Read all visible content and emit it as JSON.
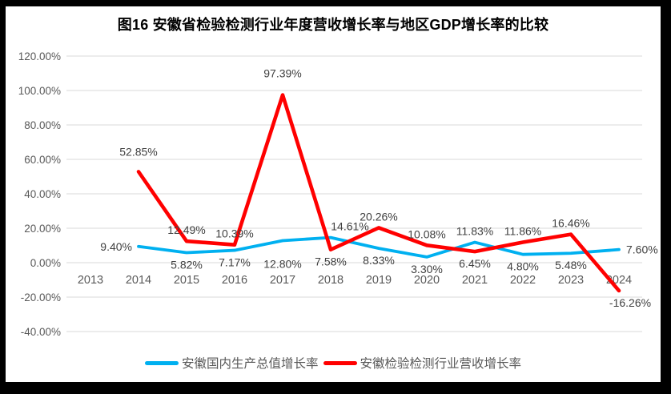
{
  "chart_data": {
    "type": "line",
    "title": "图16  安徽省检验检测行业年度营收增长率与地区GDP增长率的比较",
    "categories": [
      "2013",
      "2014",
      "2015",
      "2016",
      "2017",
      "2018",
      "2019",
      "2020",
      "2021",
      "2022",
      "2023",
      "2024"
    ],
    "series": [
      {
        "name": "安徽国内生产总值增长率",
        "color": "#00B0F0",
        "values": [
          null,
          9.4,
          5.82,
          7.17,
          12.8,
          14.61,
          8.33,
          3.3,
          11.83,
          4.8,
          5.48,
          7.6
        ]
      },
      {
        "name": "安徽检验检测行业营收增长率",
        "color": "#FF0000",
        "values": [
          null,
          52.85,
          12.49,
          10.39,
          97.39,
          7.58,
          20.26,
          10.08,
          6.45,
          11.86,
          16.46,
          -16.26
        ]
      }
    ],
    "values_unit": "percent",
    "data_label_format": "0.00%",
    "y_axis": {
      "min": -40,
      "max": 120,
      "step": 20,
      "tick_labels": [
        "-40.00%",
        "-20.00%",
        "0.00%",
        "20.00%",
        "40.00%",
        "60.00%",
        "80.00%",
        "100.00%",
        "120.00%"
      ]
    },
    "x_axis": {
      "tick_labels": [
        "2013",
        "2014",
        "2015",
        "2016",
        "2017",
        "2018",
        "2019",
        "2020",
        "2021",
        "2022",
        "2023",
        "2024"
      ]
    },
    "grid": true,
    "legend_position": "bottom"
  },
  "colors": {
    "outer_background": "#000000",
    "chart_background": "#FFFFFF",
    "gridline": "#D9D9D9",
    "axis_text": "#595959",
    "data_label_text": "#404040",
    "title_text": "#000000",
    "series_gdp": "#00B0F0",
    "series_revenue": "#FF0000"
  }
}
